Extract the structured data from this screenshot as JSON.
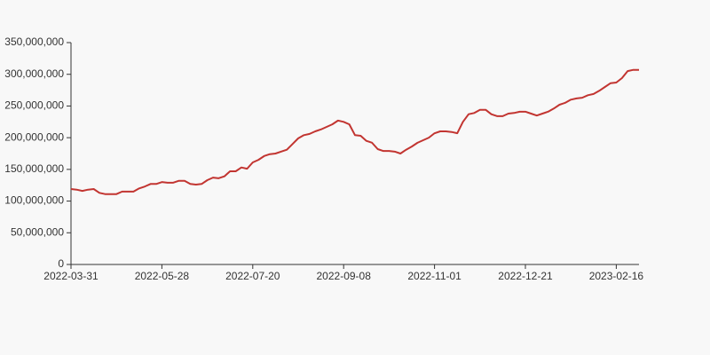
{
  "chart_data": {
    "type": "line",
    "categories": [
      "2022-03-31",
      null,
      null,
      null,
      null,
      null,
      null,
      null,
      null,
      null,
      null,
      null,
      null,
      null,
      null,
      null,
      "2022-05-28",
      null,
      null,
      null,
      null,
      null,
      null,
      null,
      null,
      null,
      null,
      null,
      null,
      null,
      null,
      null,
      "2022-07-20",
      null,
      null,
      null,
      null,
      null,
      null,
      null,
      null,
      null,
      null,
      null,
      null,
      null,
      null,
      null,
      "2022-09-08",
      null,
      null,
      null,
      null,
      null,
      null,
      null,
      null,
      null,
      null,
      null,
      null,
      null,
      null,
      null,
      "2022-11-01",
      null,
      null,
      null,
      null,
      null,
      null,
      null,
      null,
      null,
      null,
      null,
      null,
      null,
      null,
      null,
      "2022-12-21",
      null,
      null,
      null,
      null,
      null,
      null,
      null,
      null,
      null,
      null,
      null,
      null,
      null,
      null,
      null,
      "2023-02-16",
      null,
      null,
      null,
      null
    ],
    "series": [
      {
        "color": "#c23531",
        "values": [
          119000000,
          118000000,
          116000000,
          118000000,
          119000000,
          113000000,
          111000000,
          111000000,
          111000000,
          115000000,
          115000000,
          115000000,
          120000000,
          123000000,
          127000000,
          127000000,
          130000000,
          129000000,
          129000000,
          132000000,
          132000000,
          127000000,
          126000000,
          127000000,
          133000000,
          137000000,
          136000000,
          139000000,
          147000000,
          147000000,
          153000000,
          151000000,
          161000000,
          165000000,
          171000000,
          174000000,
          175000000,
          178000000,
          181000000,
          190000000,
          199000000,
          204000000,
          206000000,
          210000000,
          213000000,
          217000000,
          221000000,
          227000000,
          225000000,
          221000000,
          204000000,
          203000000,
          195000000,
          192000000,
          182000000,
          179000000,
          179000000,
          178000000,
          175000000,
          181000000,
          186000000,
          192000000,
          196000000,
          200000000,
          207000000,
          210000000,
          210000000,
          209000000,
          207000000,
          225000000,
          237000000,
          239000000,
          244000000,
          244000000,
          237000000,
          234000000,
          234000000,
          238000000,
          239000000,
          241000000,
          241000000,
          238000000,
          235000000,
          238000000,
          241000000,
          246000000,
          252000000,
          255000000,
          260000000,
          262000000,
          263000000,
          267000000,
          269000000,
          274000000,
          280000000,
          286000000,
          287000000,
          294000000,
          305000000,
          307000000,
          307000000
        ]
      }
    ],
    "ylim": [
      0,
      350000000
    ],
    "yticks": [
      0,
      {
        "value": 50000000,
        "label": "50,000,000"
      },
      {
        "value": 100000000,
        "label": "100,000,000"
      },
      {
        "value": 150000000,
        "label": "150,000,000"
      },
      {
        "value": 200000000,
        "label": "200,000,000"
      },
      {
        "value": 250000000,
        "label": "250,000,000"
      },
      {
        "value": 300000000,
        "label": "300,000,000"
      },
      {
        "value": 350000000,
        "label": "350,000,000"
      }
    ],
    "grid": false
  }
}
